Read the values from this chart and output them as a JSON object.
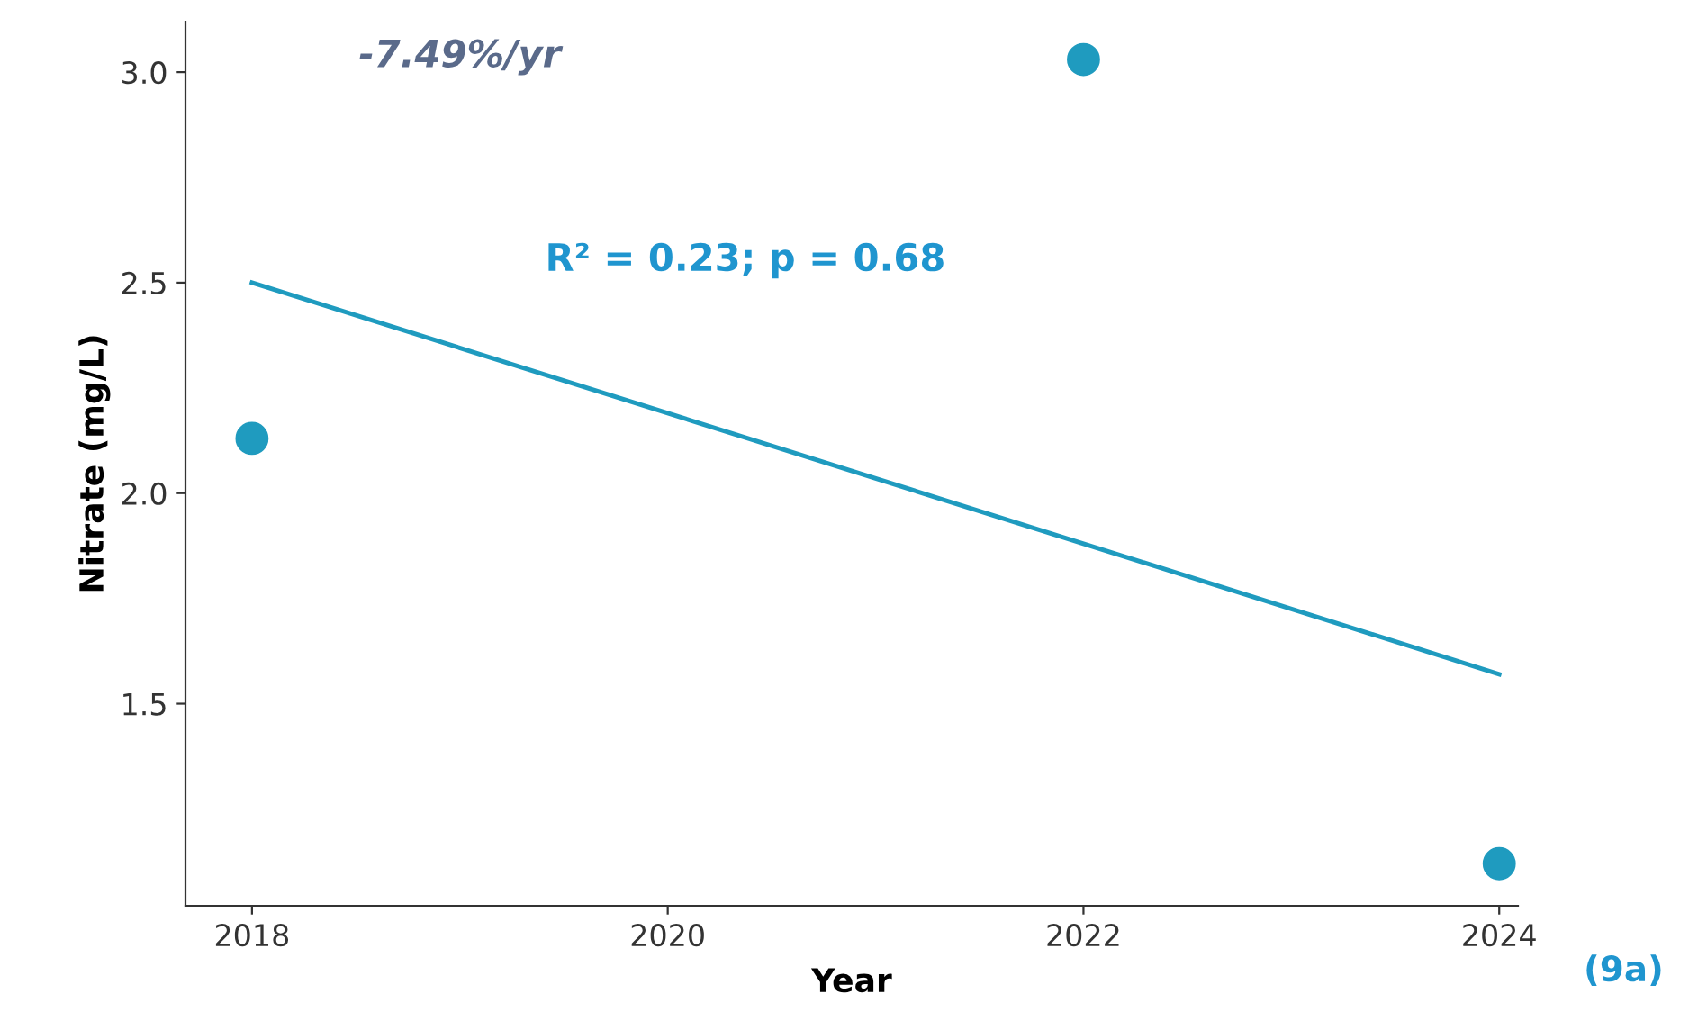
{
  "chart_data": {
    "type": "scatter",
    "xlabel": "Year",
    "ylabel": "Nitrate (mg/L)",
    "annotations": [
      "-7.49%/yr",
      "R² = 0.23; p = 0.68",
      "(9a)"
    ],
    "series": [
      {
        "color": "#1f9bbf",
        "marker": "circle",
        "x": [
          2018,
          2022,
          2024
        ],
        "values": [
          2.13,
          3.03,
          1.12
        ]
      },
      {
        "type": "line",
        "color": "#1f9bbf",
        "marker": "none",
        "line_style": "solid",
        "x": [
          2018,
          2024
        ],
        "values": [
          2.5,
          1.57
        ]
      }
    ],
    "xlim": [
      2017.68,
      2024.09
    ],
    "xticks": [
      2018,
      2020,
      2022,
      2024
    ],
    "ylim": [
      1.02,
      3.12
    ],
    "yticks": [
      1.5,
      {
        "value": 2,
        "label": "2.0"
      },
      2.5,
      {
        "value": 3,
        "label": "3.0"
      }
    ]
  }
}
